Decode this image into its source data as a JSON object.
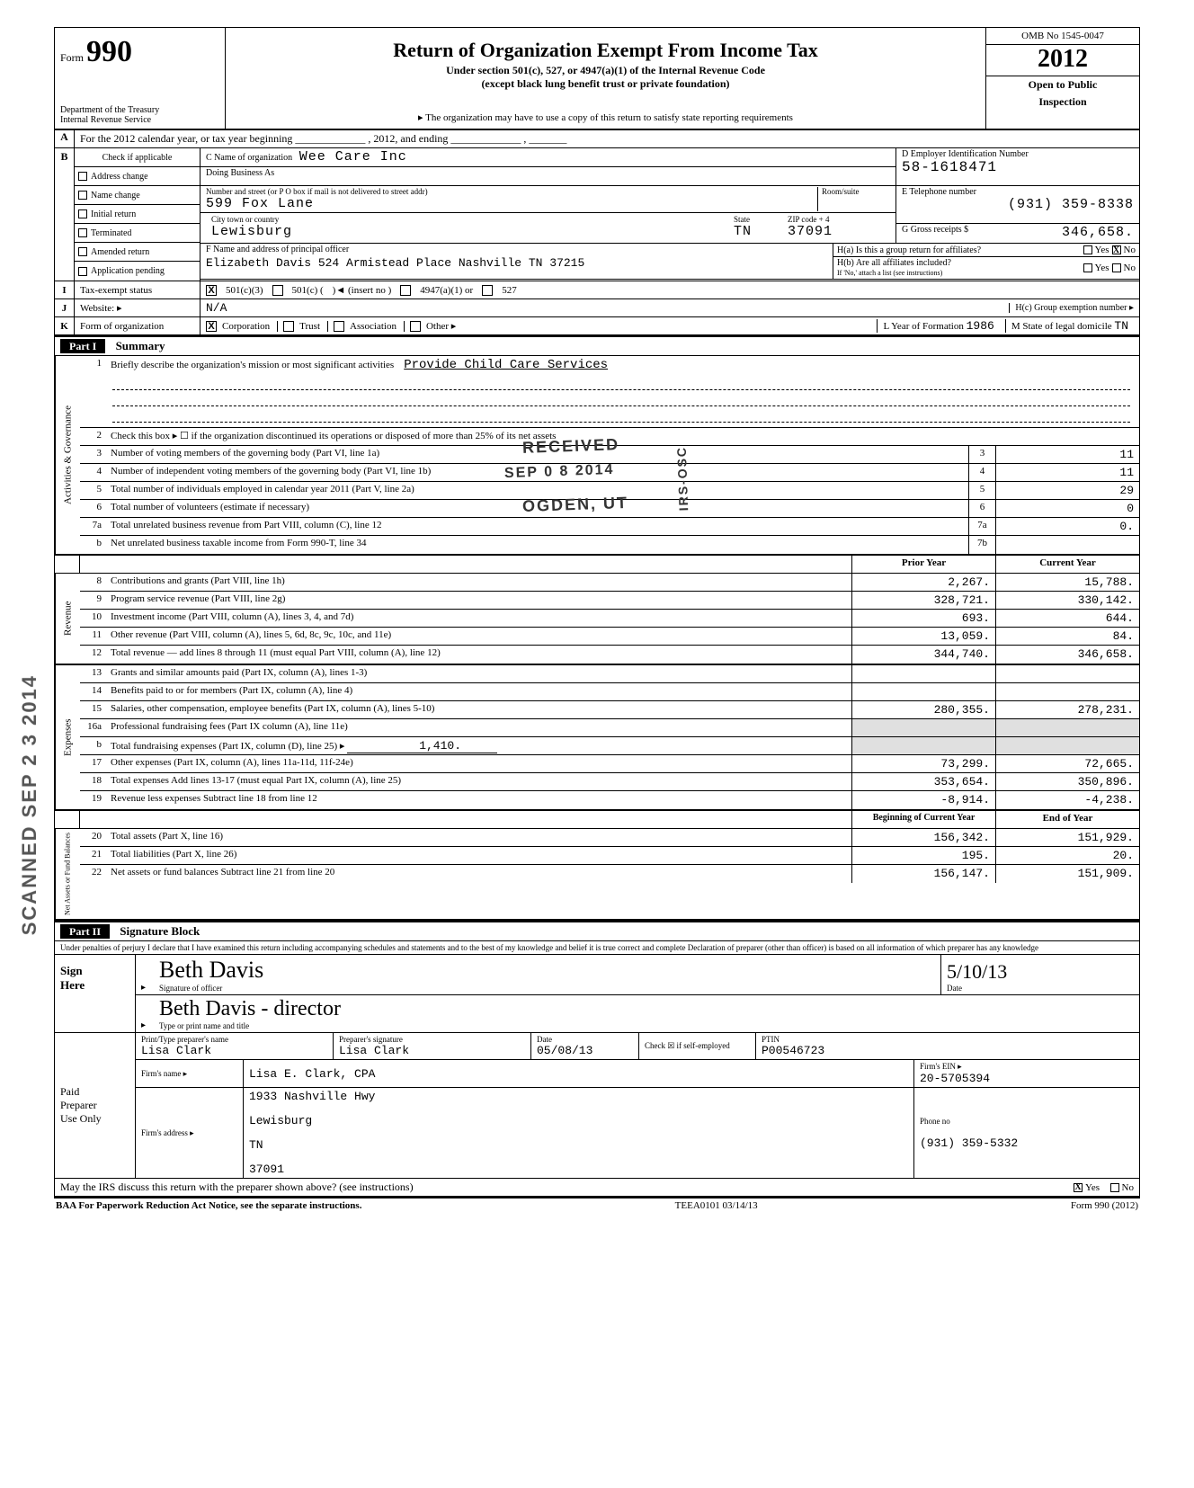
{
  "header": {
    "form_word": "Form",
    "form_number": "990",
    "dept1": "Department of the Treasury",
    "dept2": "Internal Revenue Service",
    "title": "Return of Organization Exempt From Income Tax",
    "subtitle1": "Under section 501(c), 527, or 4947(a)(1) of the Internal Revenue Code",
    "subtitle2": "(except black lung benefit trust or private foundation)",
    "note": "▸ The organization may have to use a copy of this return to satisfy state reporting requirements",
    "omb": "OMB No  1545-0047",
    "year": "2012",
    "open1": "Open to Public",
    "open2": "Inspection"
  },
  "rowA": {
    "label": "A",
    "text": "For the 2012 calendar year, or tax year beginning _____________ , 2012, and ending _____________ , _______"
  },
  "rowB": {
    "label": "B",
    "check_hdr": "Check if applicable",
    "checks": [
      "Address change",
      "Name change",
      "Initial return",
      "Terminated",
      "Amended return",
      "Application pending"
    ],
    "c_label": "C  Name of organization",
    "org_name": "Wee Care Inc",
    "dba_label": "Doing Business As",
    "addr_label": "Number and street (or P O  box if mail is not delivered to street addr)",
    "room_label": "Room/suite",
    "street": "599 Fox Lane",
    "city_label": "City  town or country",
    "state_label": "State",
    "zip_label": "ZIP code + 4",
    "city": "Lewisburg",
    "state": "TN",
    "zip": "37091",
    "d_label": "D  Employer Identification Number",
    "ein": "58-1618471",
    "e_label": "E  Telephone number",
    "phone": "(931) 359-8338",
    "g_label": "G  Gross receipts $",
    "gross": "346,658.",
    "f_label": "F  Name and address of principal officer",
    "officer": "Elizabeth Davis 524 Armistead Place Nashville    TN 37215",
    "ha": "H(a) Is this a group return for affiliates?",
    "hb": "H(b) Are all affiliates included?",
    "hb_note": "If 'No,' attach a list  (see instructions)",
    "yes": "Yes",
    "no": "No",
    "ha_no_x": "X"
  },
  "rowI": {
    "label": "I",
    "labtxt": "Tax-exempt status",
    "c3": "501(c)(3)",
    "c": "501(c) (",
    "insert": ")◄  (insert no )",
    "a1": "4947(a)(1) or",
    "s527": "527",
    "x": "X"
  },
  "rowJ": {
    "label": "J",
    "labtxt": "Website: ▸",
    "val": "N/A",
    "hc": "H(c) Group exemption number ▸"
  },
  "rowK": {
    "label": "K",
    "labtxt": "Form of organization",
    "corp": "Corporation",
    "trust": "Trust",
    "assoc": "Association",
    "other": "Other ▸",
    "x": "X",
    "l_label": "L Year of Formation",
    "l_val": "1986",
    "m_label": "M State of legal domicile",
    "m_val": "TN"
  },
  "part1": {
    "label": "Part I",
    "title": "Summary"
  },
  "governance": {
    "vtab": "Activities & Governance",
    "l1": "Briefly describe the organization's mission or most significant activities",
    "l1_val": "Provide Child Care Services",
    "l2": "Check this box ▸ ☐  if the organization discontinued its operations or disposed of more than 25% of its net assets",
    "l3": "Number of voting members of the governing body (Part VI, line 1a)",
    "l3_val": "11",
    "l4": "Number of independent voting members of the governing body (Part VI, line 1b)",
    "l4_val": "11",
    "l5": "Total number of individuals employed in calendar year 2011 (Part V, line 2a)",
    "l5_val": "29",
    "l6": "Total number of volunteers (estimate if necessary)",
    "l6_val": "0",
    "l7a": "Total unrelated business revenue from Part VIII, column (C), line 12",
    "l7a_val": "0.",
    "l7b": "Net unrelated business taxable income from Form 990-T, line 34",
    "stamp1": "RECEIVED",
    "stamp2": "SEP  0 8 2014",
    "stamp3": "OGDEN, UT",
    "stamp_side": "IRS-OSC"
  },
  "headers": {
    "prior": "Prior Year",
    "current": "Current Year",
    "boy": "Beginning of Current Year",
    "eoy": "End of Year"
  },
  "revenue": {
    "vtab": "Revenue",
    "rows": [
      {
        "n": "8",
        "t": "Contributions and grants (Part VIII, line 1h)",
        "p": "2,267.",
        "c": "15,788."
      },
      {
        "n": "9",
        "t": "Program service revenue (Part VIII, line 2g)",
        "p": "328,721.",
        "c": "330,142."
      },
      {
        "n": "10",
        "t": "Investment income (Part VIII, column (A), lines 3, 4, and 7d)",
        "p": "693.",
        "c": "644."
      },
      {
        "n": "11",
        "t": "Other revenue (Part VIII, column (A), lines 5, 6d, 8c, 9c, 10c, and 11e)",
        "p": "13,059.",
        "c": "84."
      },
      {
        "n": "12",
        "t": "Total revenue — add lines 8 through 11 (must equal Part VIII, column (A), line 12)",
        "p": "344,740.",
        "c": "346,658."
      }
    ]
  },
  "expenses": {
    "vtab": "Expenses",
    "rows": [
      {
        "n": "13",
        "t": "Grants and similar amounts paid (Part IX, column (A), lines 1-3)",
        "p": "",
        "c": ""
      },
      {
        "n": "14",
        "t": "Benefits paid to or for members (Part IX, column (A), line 4)",
        "p": "",
        "c": ""
      },
      {
        "n": "15",
        "t": "Salaries, other compensation, employee benefits (Part IX, column (A), lines 5-10)",
        "p": "280,355.",
        "c": "278,231."
      }
    ],
    "l16a": "Professional fundraising fees (Part IX  column (A), line 11e)",
    "l16b": "Total fundraising expenses (Part IX, column (D), line 25) ▸",
    "l16b_val": "1,410.",
    "rows2": [
      {
        "n": "17",
        "t": "Other expenses (Part IX, column (A), lines 11a-11d, 11f-24e)",
        "p": "73,299.",
        "c": "72,665."
      },
      {
        "n": "18",
        "t": "Total expenses  Add lines 13-17 (must equal Part IX, column (A), line 25)",
        "p": "353,654.",
        "c": "350,896."
      },
      {
        "n": "19",
        "t": "Revenue less expenses  Subtract line 18 from line 12",
        "p": "-8,914.",
        "c": "-4,238."
      }
    ]
  },
  "netassets": {
    "vtab": "Net Assets or\nFund Balances",
    "rows": [
      {
        "n": "20",
        "t": "Total assets (Part X, line 16)",
        "p": "156,342.",
        "c": "151,929."
      },
      {
        "n": "21",
        "t": "Total liabilities (Part X, line 26)",
        "p": "195.",
        "c": "20."
      },
      {
        "n": "22",
        "t": "Net assets or fund balances  Subtract line 21 from line 20",
        "p": "156,147.",
        "c": "151,909."
      }
    ]
  },
  "part2": {
    "label": "Part II",
    "title": "Signature Block"
  },
  "sig": {
    "perjury": "Under penalties of perjury  I declare that I have examined this return  including accompanying schedules and statements  and to the best of my knowledge and belief  it is true  correct  and complete  Declaration of preparer (other than officer) is based on all information of which preparer has any knowledge",
    "sign_here": "Sign\nHere",
    "sig_of_officer": "Signature of officer",
    "officer_sig": "Beth Davis",
    "date_label": "Date",
    "date_val": "5/10/13",
    "type_name_label": "Type or print name and title",
    "type_name": "Beth  Davis  - director",
    "paid": "Paid\nPreparer\nUse Only",
    "prep_name_label": "Print/Type preparer's name",
    "prep_name": "Lisa Clark",
    "prep_sig_label": "Preparer's signature",
    "prep_sig": "Lisa Clark",
    "prep_date": "05/08/13",
    "check_if": "Check ☒ if self-employed",
    "ptin_label": "PTIN",
    "ptin": "P00546723",
    "firm_name_label": "Firm's name    ▸",
    "firm_name": "Lisa E. Clark, CPA",
    "firm_addr_label": "Firm's address ▸",
    "firm_addr1": "1933 Nashville Hwy",
    "firm_city": "Lewisburg",
    "firm_state": "TN",
    "firm_zip": "37091",
    "firm_ein_label": "Firm's EIN ▸",
    "firm_ein": "20-5705394",
    "phone_label": "Phone no",
    "phone": "(931) 359-5332",
    "discuss": "May the IRS discuss this return with the preparer shown above? (see instructions)",
    "discuss_x": "X",
    "yes": "Yes",
    "no": "No"
  },
  "footer": {
    "baa": "BAA For Paperwork Reduction Act Notice, see the separate instructions.",
    "code": "TEEA0101   03/14/13",
    "form": "Form 990 (2012)"
  },
  "scanned": "SCANNED SEP 2 3 2014"
}
